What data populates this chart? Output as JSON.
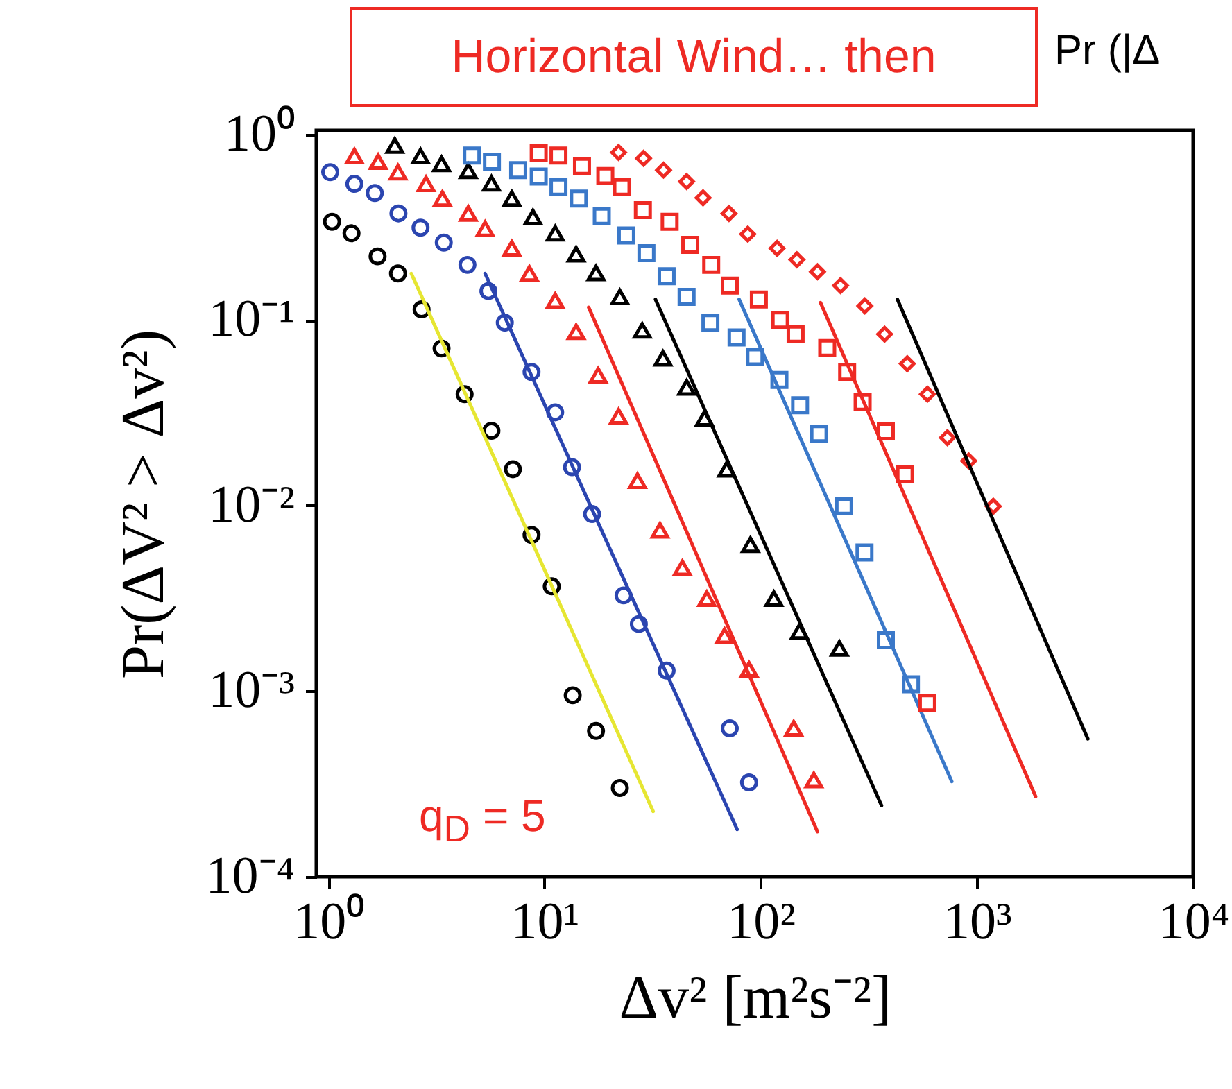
{
  "chart_data": {
    "type": "scatter",
    "title": "Horizontal Wind… then",
    "xlabel": "Δv² [m²s⁻²]",
    "ylabel": "Pr(ΔV² > Δv²)",
    "annotations": [
      "Pr (|Δ",
      "q$_{D}$ = 5"
    ],
    "log": "xy",
    "grid": false,
    "xlim": [
      0.88,
      10000
    ],
    "ylim": [
      0.0001,
      1.05
    ],
    "xticks": [
      {
        "value": 1,
        "label": "10⁰"
      },
      {
        "value": 10,
        "label": "10¹"
      },
      {
        "value": 100,
        "label": "10²"
      },
      {
        "value": 1000,
        "label": "10³"
      },
      {
        "value": 10000,
        "label": "10⁴"
      }
    ],
    "yticks": [
      {
        "value": 0.0001,
        "label": "10⁻⁴"
      },
      {
        "value": 0.001,
        "label": "10⁻³"
      },
      {
        "value": 0.01,
        "label": "10⁻²"
      },
      {
        "value": 0.1,
        "label": "10⁻¹"
      },
      {
        "value": 1,
        "label": "10⁰"
      }
    ],
    "series": [
      {
        "marker": "circle",
        "color": "#000000",
        "x": [
          1.04,
          1.28,
          1.69,
          2.1,
          2.7,
          3.34,
          4.27,
          5.68,
          7.14,
          8.71,
          10.8,
          13.5,
          17.3,
          22.3
        ],
        "values": [
          0.338,
          0.293,
          0.22,
          0.178,
          0.114,
          0.0702,
          0.0398,
          0.0253,
          0.0157,
          0.00694,
          0.00367,
          0.00095,
          0.00061,
          0.000301
        ]
      },
      {
        "type": "line",
        "color": "#e6e632",
        "x": [
          2.42,
          31.8
        ],
        "values": [
          0.178,
          0.000225
        ]
      },
      {
        "marker": "circle",
        "color": "#2b45b0",
        "x": [
          1.02,
          1.32,
          1.64,
          2.11,
          2.67,
          3.42,
          4.4,
          5.5,
          6.55,
          8.71,
          11.2,
          13.4,
          16.6,
          23.2,
          27.3,
          36.7,
          71.9,
          88.3
        ],
        "values": [
          0.625,
          0.541,
          0.483,
          0.375,
          0.314,
          0.261,
          0.198,
          0.143,
          0.0967,
          0.0524,
          0.0318,
          0.0161,
          0.009,
          0.00328,
          0.0023,
          0.00129,
          0.00063,
          0.000322
        ]
      },
      {
        "type": "line",
        "color": "#2b45b0",
        "x": [
          5.31,
          77.8
        ],
        "values": [
          0.178,
          0.00018
        ]
      },
      {
        "marker": "triangle",
        "color": "#ee2a24",
        "x": [
          1.32,
          1.7,
          2.1,
          2.83,
          3.37,
          4.44,
          5.31,
          7.06,
          8.51,
          11.2,
          14.0,
          17.7,
          22.0,
          26.9,
          34.2,
          43.4,
          56.3,
          68.0,
          88.3,
          142,
          176
        ],
        "values": [
          0.763,
          0.713,
          0.625,
          0.541,
          0.451,
          0.375,
          0.31,
          0.243,
          0.178,
          0.127,
          0.0863,
          0.0503,
          0.0303,
          0.0136,
          0.00736,
          0.00462,
          0.00315,
          0.00199,
          0.00131,
          0.00063,
          0.000332
        ]
      },
      {
        "type": "line",
        "color": "#ee2a24",
        "x": [
          16.0,
          183
        ],
        "values": [
          0.117,
          0.000175
        ]
      },
      {
        "marker": "triangle",
        "color": "#000000",
        "x": [
          2.03,
          2.67,
          3.34,
          4.44,
          5.68,
          7.06,
          8.84,
          11.2,
          14.0,
          17.3,
          22.3,
          28.3,
          35.3,
          45.4,
          54.9,
          69.6,
          89.6,
          115,
          151,
          231
        ],
        "values": [
          0.871,
          0.763,
          0.693,
          0.636,
          0.545,
          0.451,
          0.358,
          0.293,
          0.226,
          0.179,
          0.133,
          0.0878,
          0.0622,
          0.0433,
          0.0295,
          0.0157,
          0.00615,
          0.00315,
          0.0021,
          0.0017
        ]
      },
      {
        "type": "line",
        "color": "#000000",
        "x": [
          32.6,
          362
        ],
        "values": [
          0.129,
          0.000242
        ]
      },
      {
        "marker": "square",
        "color": "#3a78c9",
        "x": [
          4.61,
          5.71,
          7.55,
          9.4,
          11.6,
          14.4,
          18.4,
          23.9,
          29.6,
          36.7,
          45.4,
          58.5,
          77.3,
          94.0,
          122,
          152,
          186,
          243,
          302,
          379,
          495
        ],
        "values": [
          0.768,
          0.713,
          0.642,
          0.593,
          0.52,
          0.451,
          0.362,
          0.285,
          0.229,
          0.172,
          0.133,
          0.0967,
          0.0805,
          0.0633,
          0.0475,
          0.0347,
          0.0244,
          0.00991,
          0.00559,
          0.00188,
          0.00109
        ]
      },
      {
        "type": "line",
        "color": "#3a78c9",
        "x": [
          79.5,
          765
        ],
        "values": [
          0.129,
          0.000326
        ]
      },
      {
        "marker": "square",
        "color": "#ee2a24",
        "x": [
          9.4,
          11.6,
          14.9,
          19.1,
          22.8,
          28.5,
          37.9,
          47.2,
          59.0,
          71.9,
          98.0,
          123,
          145,
          203,
          251,
          296,
          379,
          465,
          590
        ],
        "values": [
          0.79,
          0.768,
          0.673,
          0.597,
          0.52,
          0.39,
          0.338,
          0.254,
          0.198,
          0.153,
          0.129,
          0.1,
          0.0838,
          0.0706,
          0.0524,
          0.0361,
          0.0251,
          0.0147,
          0.000865
        ]
      },
      {
        "type": "line",
        "color": "#ee2a24",
        "x": [
          189,
          1868
        ],
        "values": [
          0.124,
          0.000271
        ]
      },
      {
        "marker": "diamond",
        "color": "#ee2a24",
        "x": [
          22.0,
          28.7,
          35.5,
          45.4,
          54.1,
          71.3,
          87.1,
          119,
          147,
          183,
          234,
          303,
          374,
          476,
          590,
          730,
          916,
          1190
        ],
        "values": [
          0.799,
          0.743,
          0.642,
          0.557,
          0.455,
          0.375,
          0.29,
          0.243,
          0.211,
          0.182,
          0.153,
          0.119,
          0.0838,
          0.0581,
          0.0398,
          0.0232,
          0.0174,
          0.00991
        ]
      },
      {
        "type": "line",
        "color": "#000000",
        "x": [
          429,
          3258
        ],
        "values": [
          0.129,
          0.000553
        ]
      }
    ]
  }
}
